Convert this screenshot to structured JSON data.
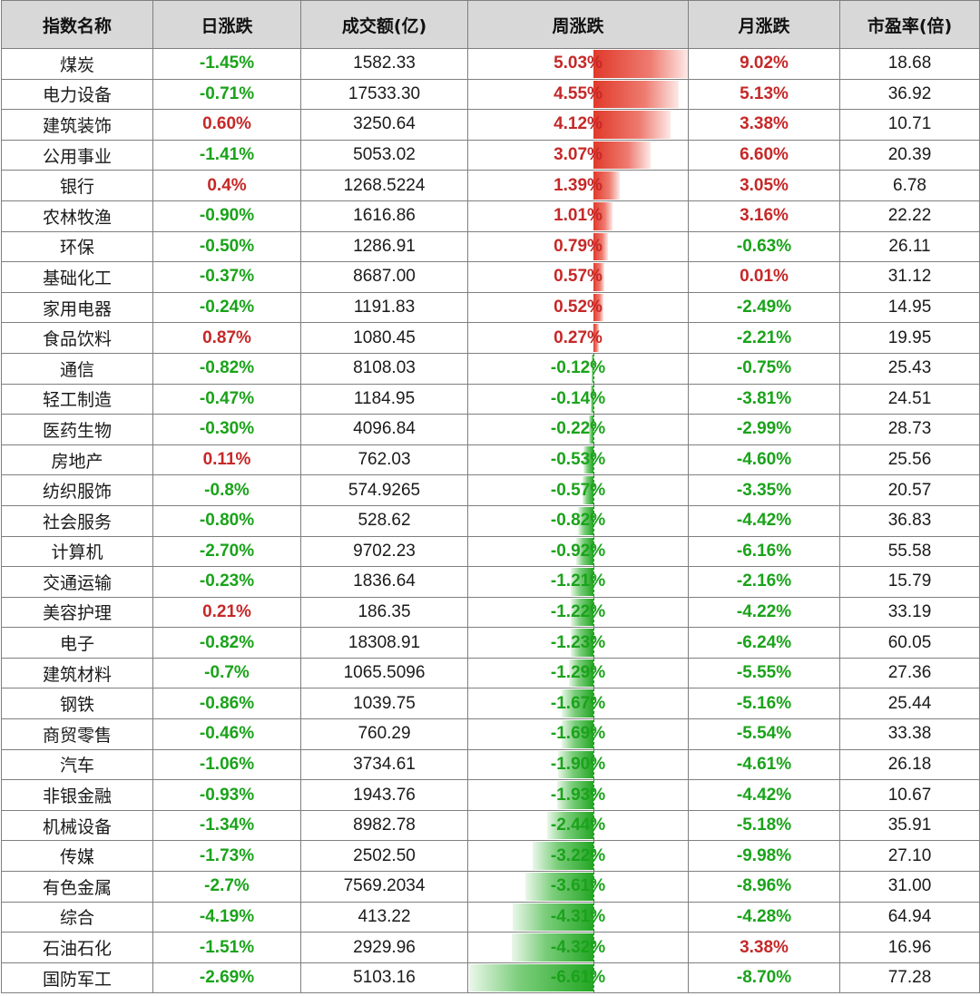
{
  "colors": {
    "up": "#c62828",
    "down": "#1aa31a",
    "header_bg": "#d8d8d8",
    "border": "#7f7f7f"
  },
  "headers": [
    "指数名称",
    "日涨跌",
    "成交额(亿)",
    "周涨跌",
    "月涨跌",
    "市盈率(倍)"
  ],
  "rows": [
    {
      "name": "煤炭",
      "daily": "-1.45%",
      "volume": "1582.33",
      "weekly": "5.03%",
      "weekly_value": 5.03,
      "monthly": "9.02%",
      "pe": "18.68"
    },
    {
      "name": "电力设备",
      "daily": "-0.71%",
      "volume": "17533.30",
      "weekly": "4.55%",
      "weekly_value": 4.55,
      "monthly": "5.13%",
      "pe": "36.92"
    },
    {
      "name": "建筑装饰",
      "daily": "0.60%",
      "volume": "3250.64",
      "weekly": "4.12%",
      "weekly_value": 4.12,
      "monthly": "3.38%",
      "pe": "10.71"
    },
    {
      "name": "公用事业",
      "daily": "-1.41%",
      "volume": "5053.02",
      "weekly": "3.07%",
      "weekly_value": 3.07,
      "monthly": "6.60%",
      "pe": "20.39"
    },
    {
      "name": "银行",
      "daily": "0.4%",
      "volume": "1268.5224",
      "weekly": "1.39%",
      "weekly_value": 1.39,
      "monthly": "3.05%",
      "pe": "6.78"
    },
    {
      "name": "农林牧渔",
      "daily": "-0.90%",
      "volume": "1616.86",
      "weekly": "1.01%",
      "weekly_value": 1.01,
      "monthly": "3.16%",
      "pe": "22.22"
    },
    {
      "name": "环保",
      "daily": "-0.50%",
      "volume": "1286.91",
      "weekly": "0.79%",
      "weekly_value": 0.79,
      "monthly": "-0.63%",
      "pe": "26.11"
    },
    {
      "name": "基础化工",
      "daily": "-0.37%",
      "volume": "8687.00",
      "weekly": "0.57%",
      "weekly_value": 0.57,
      "monthly": "0.01%",
      "pe": "31.12"
    },
    {
      "name": "家用电器",
      "daily": "-0.24%",
      "volume": "1191.83",
      "weekly": "0.52%",
      "weekly_value": 0.52,
      "monthly": "-2.49%",
      "pe": "14.95"
    },
    {
      "name": "食品饮料",
      "daily": "0.87%",
      "volume": "1080.45",
      "weekly": "0.27%",
      "weekly_value": 0.27,
      "monthly": "-2.21%",
      "pe": "19.95"
    },
    {
      "name": "通信",
      "daily": "-0.82%",
      "volume": "8108.03",
      "weekly": "-0.12%",
      "weekly_value": -0.12,
      "monthly": "-0.75%",
      "pe": "25.43"
    },
    {
      "name": "轻工制造",
      "daily": "-0.47%",
      "volume": "1184.95",
      "weekly": "-0.14%",
      "weekly_value": -0.14,
      "monthly": "-3.81%",
      "pe": "24.51"
    },
    {
      "name": "医药生物",
      "daily": "-0.30%",
      "volume": "4096.84",
      "weekly": "-0.22%",
      "weekly_value": -0.22,
      "monthly": "-2.99%",
      "pe": "28.73"
    },
    {
      "name": "房地产",
      "daily": "0.11%",
      "volume": "762.03",
      "weekly": "-0.53%",
      "weekly_value": -0.53,
      "monthly": "-4.60%",
      "pe": "25.56"
    },
    {
      "name": "纺织服饰",
      "daily": "-0.8%",
      "volume": "574.9265",
      "weekly": "-0.57%",
      "weekly_value": -0.57,
      "monthly": "-3.35%",
      "pe": "20.57"
    },
    {
      "name": "社会服务",
      "daily": "-0.80%",
      "volume": "528.62",
      "weekly": "-0.82%",
      "weekly_value": -0.82,
      "monthly": "-4.42%",
      "pe": "36.83"
    },
    {
      "name": "计算机",
      "daily": "-2.70%",
      "volume": "9702.23",
      "weekly": "-0.92%",
      "weekly_value": -0.92,
      "monthly": "-6.16%",
      "pe": "55.58"
    },
    {
      "name": "交通运输",
      "daily": "-0.23%",
      "volume": "1836.64",
      "weekly": "-1.21%",
      "weekly_value": -1.21,
      "monthly": "-2.16%",
      "pe": "15.79"
    },
    {
      "name": "美容护理",
      "daily": "0.21%",
      "volume": "186.35",
      "weekly": "-1.22%",
      "weekly_value": -1.22,
      "monthly": "-4.22%",
      "pe": "33.19"
    },
    {
      "name": "电子",
      "daily": "-0.82%",
      "volume": "18308.91",
      "weekly": "-1.23%",
      "weekly_value": -1.23,
      "monthly": "-6.24%",
      "pe": "60.05"
    },
    {
      "name": "建筑材料",
      "daily": "-0.7%",
      "volume": "1065.5096",
      "weekly": "-1.29%",
      "weekly_value": -1.29,
      "monthly": "-5.55%",
      "pe": "27.36"
    },
    {
      "name": "钢铁",
      "daily": "-0.86%",
      "volume": "1039.75",
      "weekly": "-1.67%",
      "weekly_value": -1.67,
      "monthly": "-5.16%",
      "pe": "25.44"
    },
    {
      "name": "商贸零售",
      "daily": "-0.46%",
      "volume": "760.29",
      "weekly": "-1.69%",
      "weekly_value": -1.69,
      "monthly": "-5.54%",
      "pe": "33.38"
    },
    {
      "name": "汽车",
      "daily": "-1.06%",
      "volume": "3734.61",
      "weekly": "-1.90%",
      "weekly_value": -1.9,
      "monthly": "-4.61%",
      "pe": "26.18"
    },
    {
      "name": "非银金融",
      "daily": "-0.93%",
      "volume": "1943.76",
      "weekly": "-1.93%",
      "weekly_value": -1.93,
      "monthly": "-4.42%",
      "pe": "10.67"
    },
    {
      "name": "机械设备",
      "daily": "-1.34%",
      "volume": "8982.78",
      "weekly": "-2.44%",
      "weekly_value": -2.44,
      "monthly": "-5.18%",
      "pe": "35.91"
    },
    {
      "name": "传媒",
      "daily": "-1.73%",
      "volume": "2502.50",
      "weekly": "-3.22%",
      "weekly_value": -3.22,
      "monthly": "-9.98%",
      "pe": "27.10"
    },
    {
      "name": "有色金属",
      "daily": "-2.7%",
      "volume": "7569.2034",
      "weekly": "-3.61%",
      "weekly_value": -3.61,
      "monthly": "-8.96%",
      "pe": "31.00"
    },
    {
      "name": "综合",
      "daily": "-4.19%",
      "volume": "413.22",
      "weekly": "-4.31%",
      "weekly_value": -4.31,
      "monthly": "-4.28%",
      "pe": "64.94"
    },
    {
      "name": "石油石化",
      "daily": "-1.51%",
      "volume": "2929.96",
      "weekly": "-4.32%",
      "weekly_value": -4.32,
      "monthly": "3.38%",
      "pe": "16.96"
    },
    {
      "name": "国防军工",
      "daily": "-2.69%",
      "volume": "5103.16",
      "weekly": "-6.61%",
      "weekly_value": -6.61,
      "monthly": "-8.70%",
      "pe": "77.28"
    }
  ]
}
